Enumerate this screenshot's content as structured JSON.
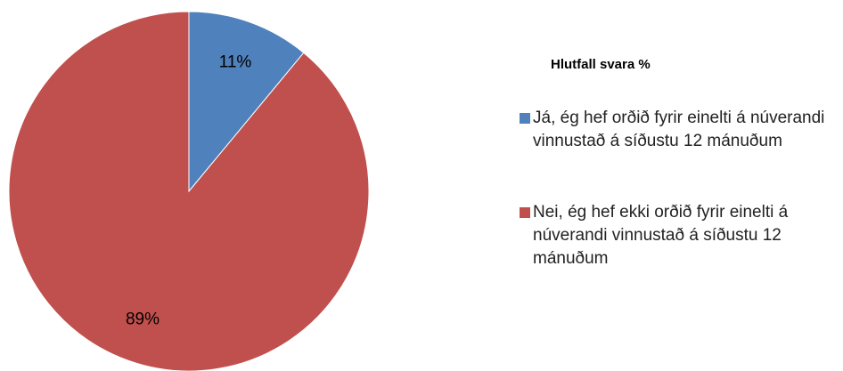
{
  "chart_data": {
    "type": "pie",
    "title": "Hlutfall svara %",
    "categories": [
      "Já, ég hef orðið fyrir einelti á núverandi vinnustað á síðustu 12 mánuðum",
      "Nei, ég hef ekki orðið fyrir einelti á núverandi vinnustað á síðustu 12 mánuðum"
    ],
    "values": [
      11,
      89
    ],
    "value_labels": [
      "11%",
      "89%"
    ],
    "colors": [
      "#4f81bd",
      "#c0504d"
    ]
  }
}
